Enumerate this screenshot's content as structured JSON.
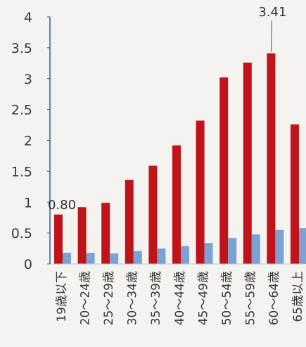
{
  "chart_data": {
    "type": "bar",
    "categories": [
      "19歳以下",
      "20～24歳",
      "25～29歳",
      "30～34歳",
      "35～39歳",
      "40～44歳",
      "45～49歳",
      "50～54歳",
      "55～59歳",
      "60～64歳",
      "65歳以上"
    ],
    "series": [
      {
        "values": [
          0.8,
          0.92,
          0.99,
          1.36,
          1.59,
          1.92,
          2.32,
          3.02,
          3.26,
          3.41,
          2.26
        ],
        "color": "#c0141b"
      },
      {
        "values": [
          0.18,
          0.18,
          0.17,
          0.21,
          0.25,
          0.29,
          0.34,
          0.42,
          0.48,
          0.55,
          0.58
        ],
        "color": "#7aa3d4"
      }
    ],
    "data_labels": [
      {
        "series": 0,
        "index": 0,
        "text": "0.80"
      },
      {
        "series": 0,
        "index": 9,
        "text": "3.41"
      }
    ],
    "yticks": [
      "0",
      "0.5",
      "1",
      "1.5",
      "2",
      "2.5",
      "3",
      "3.5",
      "4"
    ],
    "ylim": [
      0,
      4
    ],
    "grid": false,
    "axis_color": "#2a5da8"
  }
}
